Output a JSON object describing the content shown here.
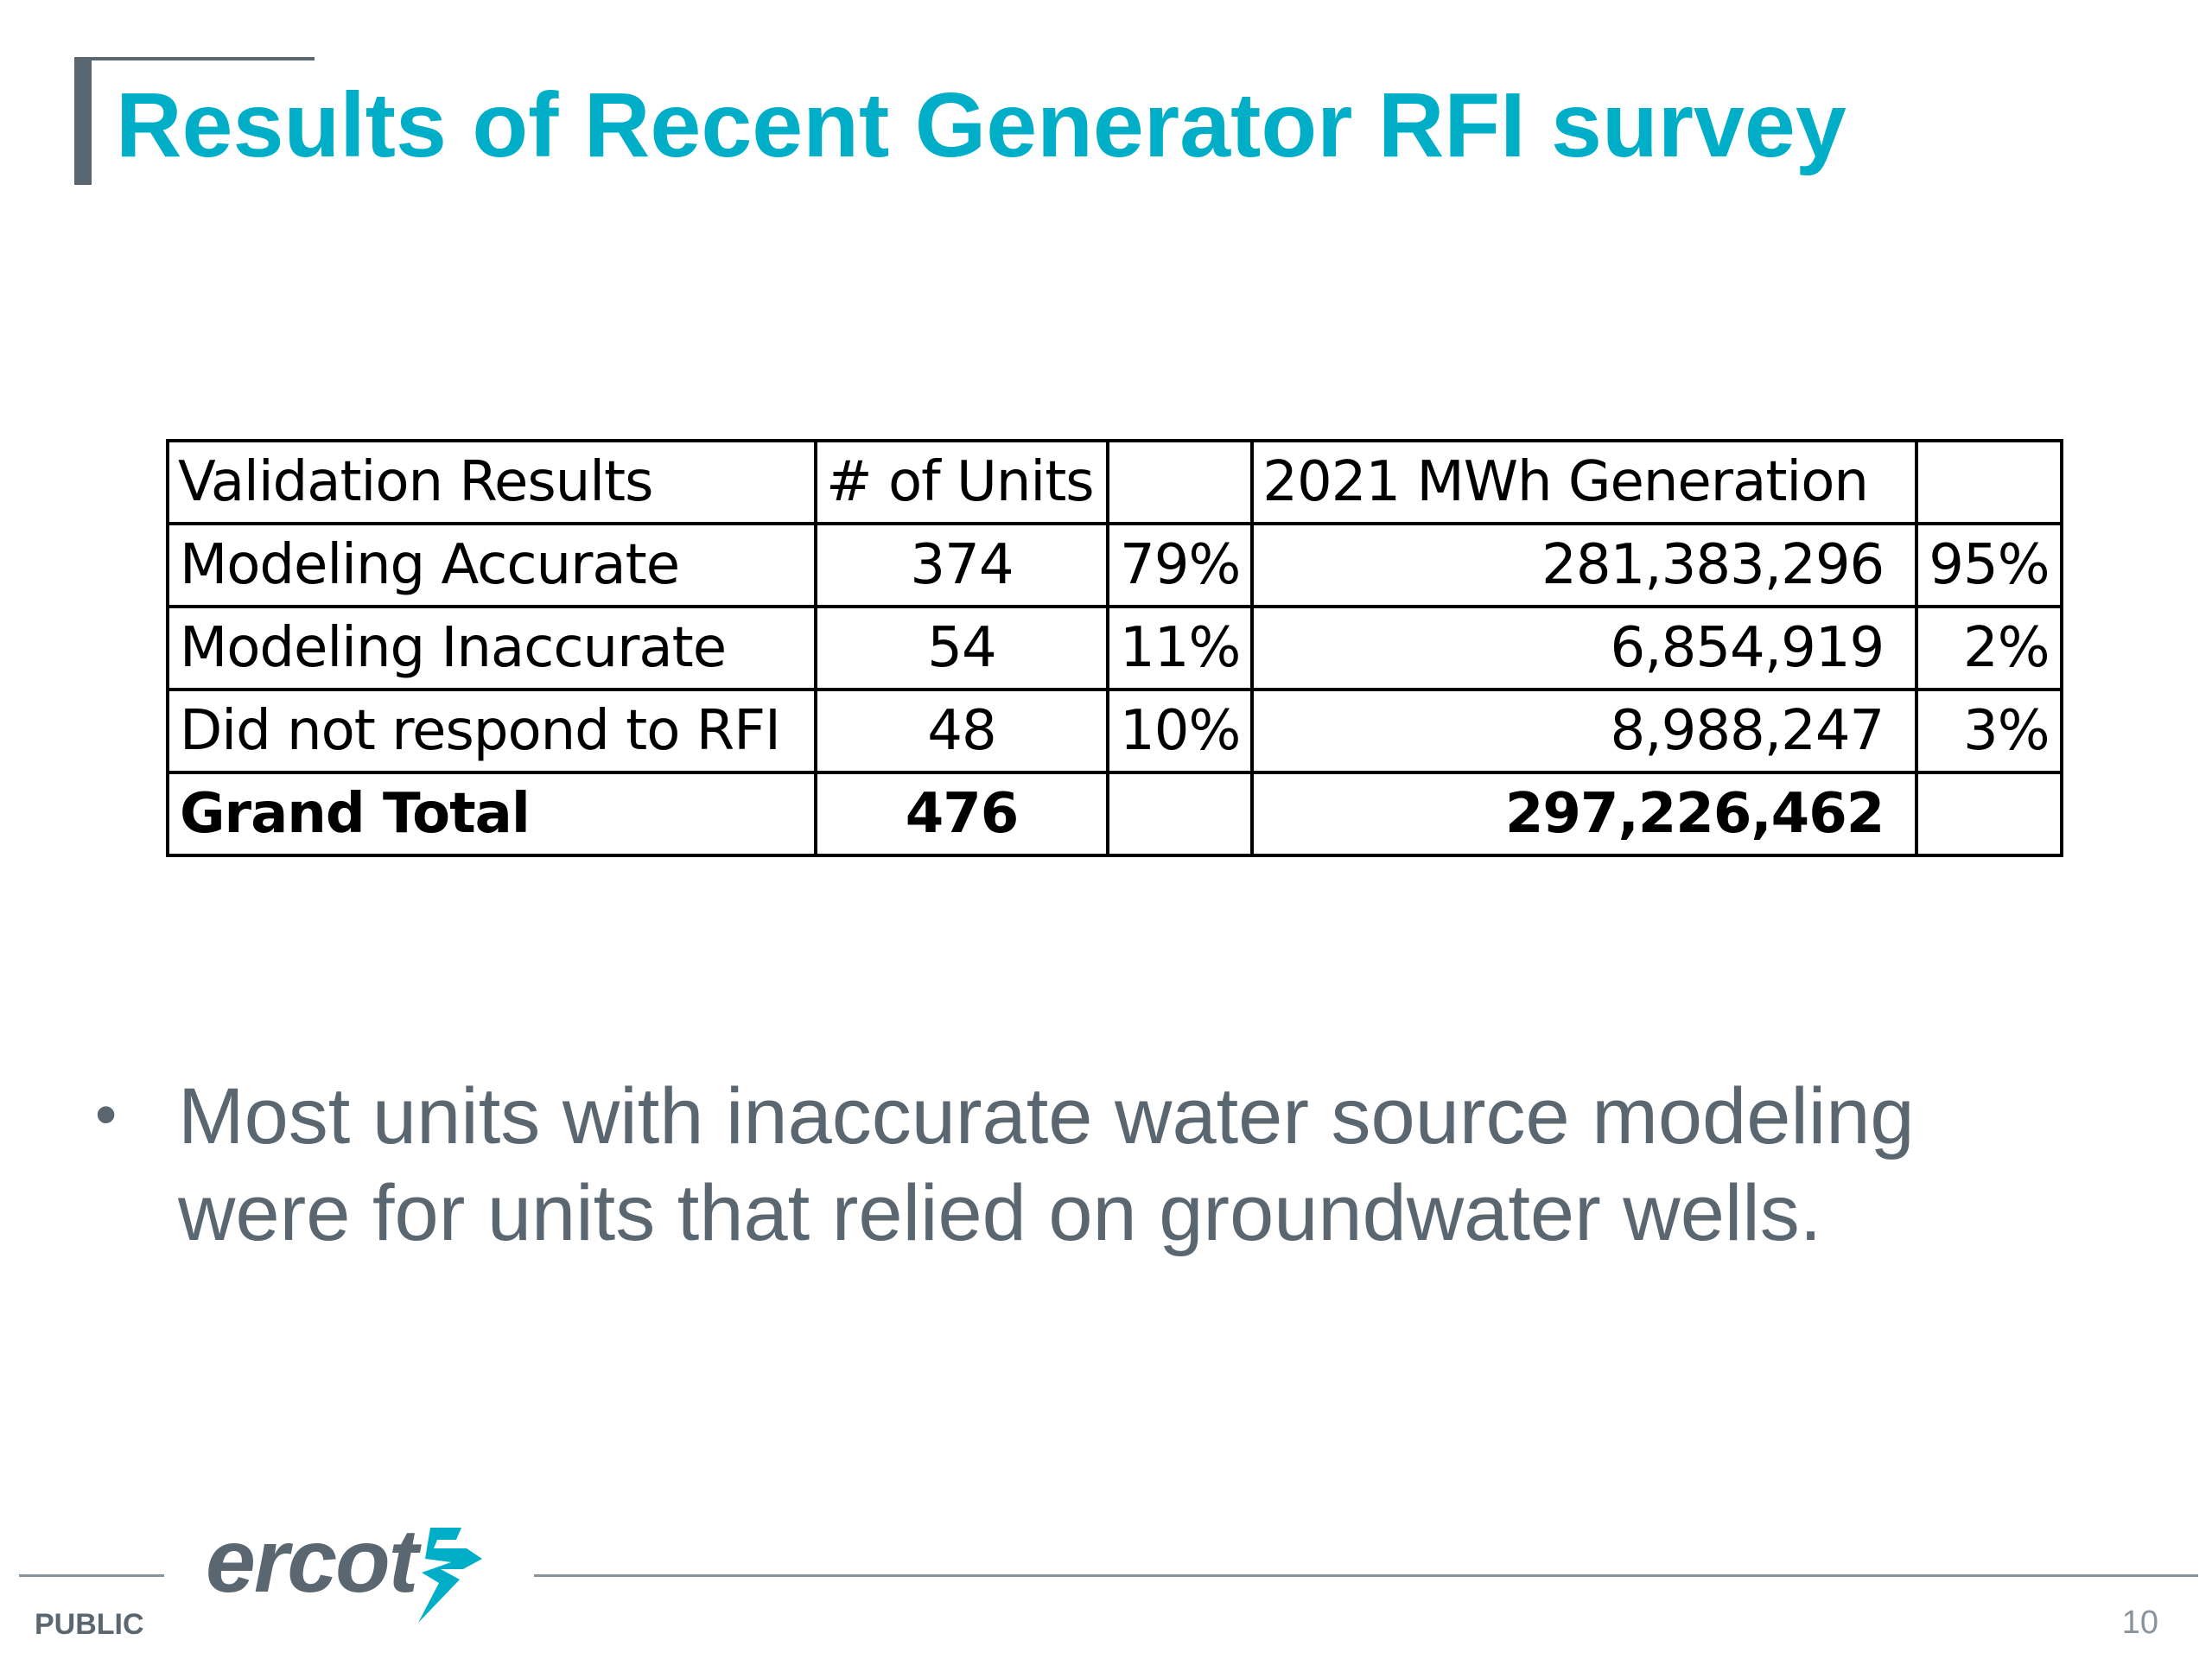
{
  "slide": {
    "title": "Results of Recent Generator RFI survey",
    "bullet": "Most units with inaccurate water source modeling were for units that relied on groundwater wells.",
    "bullet_symbol": "•"
  },
  "table": {
    "header": {
      "validation_results": "Validation Results",
      "units": "# of Units",
      "units_pct": "",
      "generation": "2021 MWh Generation",
      "generation_pct": ""
    },
    "rows": [
      {
        "label": "Modeling Accurate",
        "units": "374",
        "units_pct": "79%",
        "generation": "281,383,296",
        "generation_pct": "95%"
      },
      {
        "label": "Modeling Inaccurate",
        "units": "54",
        "units_pct": "11%",
        "generation": "6,854,919",
        "generation_pct": "2%"
      },
      {
        "label": "Did not respond to RFI",
        "units": "48",
        "units_pct": "10%",
        "generation": "8,988,247",
        "generation_pct": "3%"
      }
    ],
    "total": {
      "label": "Grand Total",
      "units": "476",
      "units_pct": "",
      "generation": "297,226,462",
      "generation_pct": ""
    }
  },
  "footer": {
    "logo_text": "ercot",
    "classification": "PUBLIC",
    "page_number": "10"
  },
  "colors": {
    "title": "#00aec7",
    "body_text": "#5b6770",
    "accent_bar": "#5b6770",
    "footer_line": "#8a949c"
  },
  "icons": {
    "logo_mark": "ercot-lightning-bolt-icon"
  }
}
